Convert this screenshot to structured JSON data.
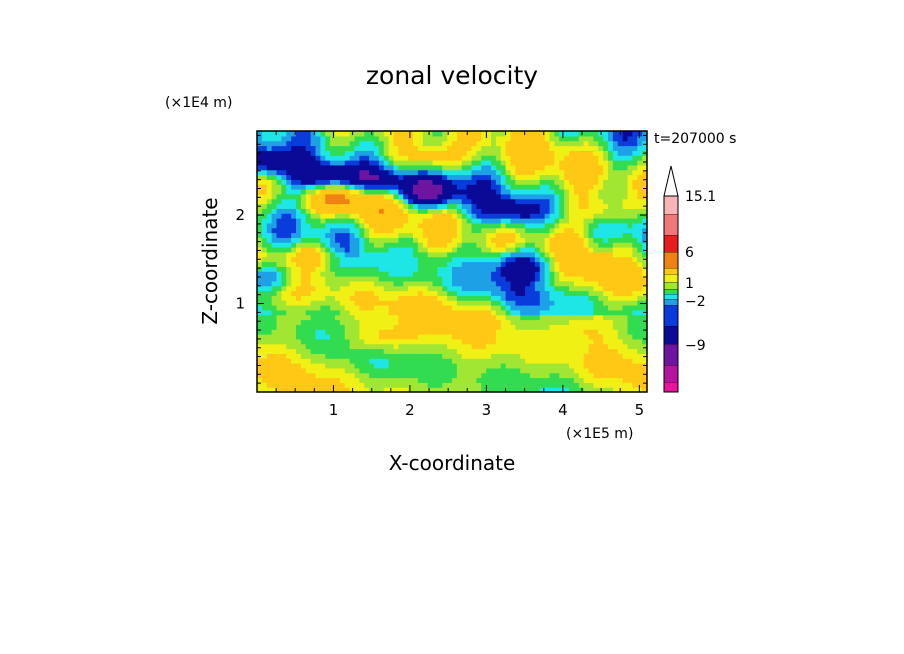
{
  "chart_data": {
    "type": "heatmap",
    "title": "zonal velocity",
    "xlabel": "X-coordinate",
    "ylabel": "Z-coordinate",
    "x_unit": "(×1E5 m)",
    "y_unit": "(×1E4 m)",
    "time_label": "t=207000 s",
    "x_ticks": [
      1,
      2,
      3,
      4,
      5
    ],
    "y_ticks": [
      1,
      2
    ],
    "xlim": [
      0,
      5.1
    ],
    "ylim": [
      0,
      2.95
    ],
    "colorbar": {
      "levels_low_to_high": [
        -15,
        -12,
        -9,
        -6,
        -3,
        -2,
        -1,
        0,
        1,
        2,
        3,
        6,
        9,
        12,
        15.1
      ],
      "colors_low_to_high": [
        "#e8149c",
        "#b414a0",
        "#6e14a0",
        "#0a0a96",
        "#0a3cdc",
        "#1ea0e6",
        "#1ee6e6",
        "#32dc50",
        "#a0e632",
        "#f0f014",
        "#ffc814",
        "#f08214",
        "#e61e1e",
        "#f07878",
        "#f8b4b4"
      ],
      "labels": [
        "15.1",
        "6",
        "1",
        "−2",
        "−9"
      ],
      "extend": "max"
    },
    "features": [
      {
        "x": 2.25,
        "z": 2.25,
        "value": -8
      },
      {
        "x": 1.55,
        "z": 2.4,
        "value": -8
      },
      {
        "x": 0.85,
        "z": 2.45,
        "value": -8
      },
      {
        "x": 0.1,
        "z": 2.6,
        "value": -7
      },
      {
        "x": 0.1,
        "z": 1.3,
        "value": -6
      },
      {
        "x": 3.3,
        "z": 2.05,
        "value": -5
      },
      {
        "x": 3.5,
        "z": 1.45,
        "value": -6
      },
      {
        "x": 2.25,
        "z": 2.65,
        "value": 5
      },
      {
        "x": 1.15,
        "z": 2.2,
        "value": 5
      },
      {
        "x": 0.75,
        "z": 1.55,
        "value": 4
      },
      {
        "x": 4.55,
        "z": 2.05,
        "value": 4
      },
      {
        "x": 1.6,
        "z": 0.6,
        "value": 3
      },
      {
        "x": 4.3,
        "z": 0.75,
        "value": 2
      },
      {
        "x": 3.0,
        "z": 0.9,
        "value": 1.5
      }
    ]
  }
}
